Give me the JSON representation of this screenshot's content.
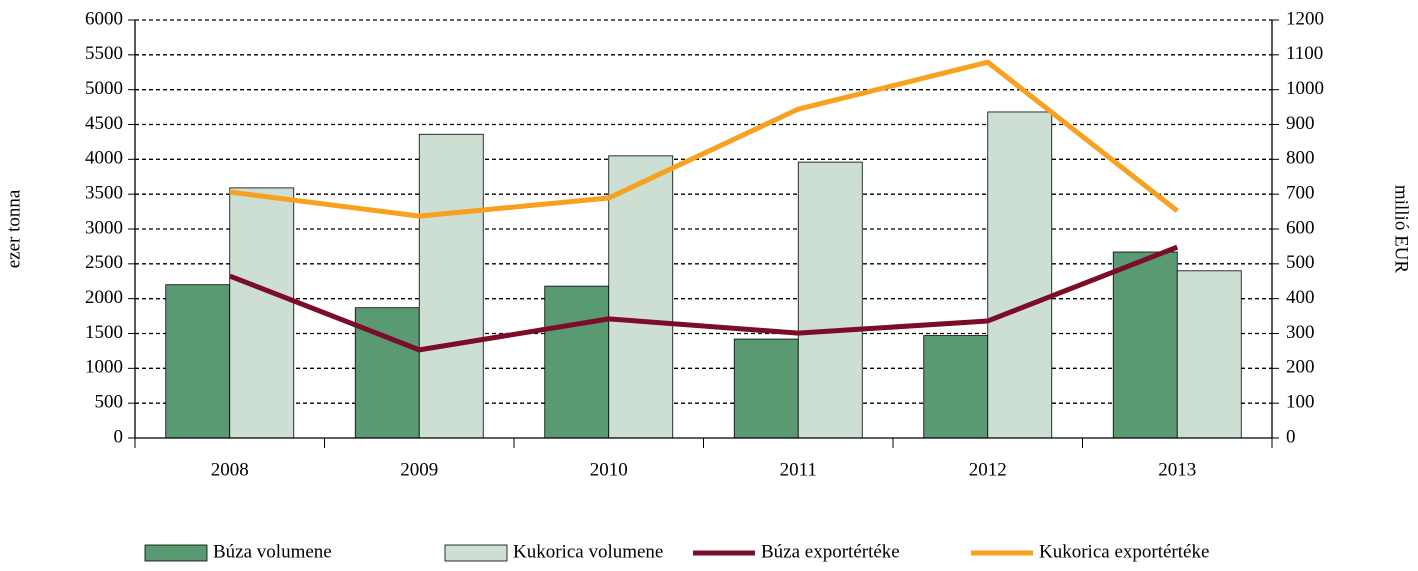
{
  "chart_data": {
    "type": "bar_line",
    "categories": [
      "2008",
      "2009",
      "2010",
      "2011",
      "2012",
      "2013"
    ],
    "ylabel": "ezer tonna",
    "y2label": "millió EUR",
    "ylim": [
      0,
      6000
    ],
    "yticks": [
      0,
      500,
      1000,
      1500,
      2000,
      2500,
      3000,
      3500,
      4000,
      4500,
      5000,
      5500,
      6000
    ],
    "y2lim": [
      0,
      1200
    ],
    "y2ticks": [
      0,
      100,
      200,
      300,
      400,
      500,
      600,
      700,
      800,
      900,
      1000,
      1100,
      1200
    ],
    "grid": true,
    "legend": "bottom",
    "series": [
      {
        "name": "Búza volumene",
        "type": "bar",
        "color": "#5a9a72",
        "values": [
          2200,
          1870,
          2180,
          1420,
          1470,
          2670
        ]
      },
      {
        "name": "Kukorica volumene",
        "type": "bar",
        "color": "#ccdfd2",
        "values": [
          3590,
          4360,
          4050,
          3960,
          4680,
          2400
        ]
      },
      {
        "name": "Búza exportértéke",
        "type": "line",
        "axis": "y2",
        "color": "#7b0c2a",
        "values": [
          465,
          253,
          342,
          301,
          336,
          548
        ]
      },
      {
        "name": "Kukorica exportértéke",
        "type": "line",
        "axis": "y2",
        "color": "#f7a11e",
        "values": [
          706,
          637,
          689,
          944,
          1079,
          652
        ]
      }
    ]
  }
}
